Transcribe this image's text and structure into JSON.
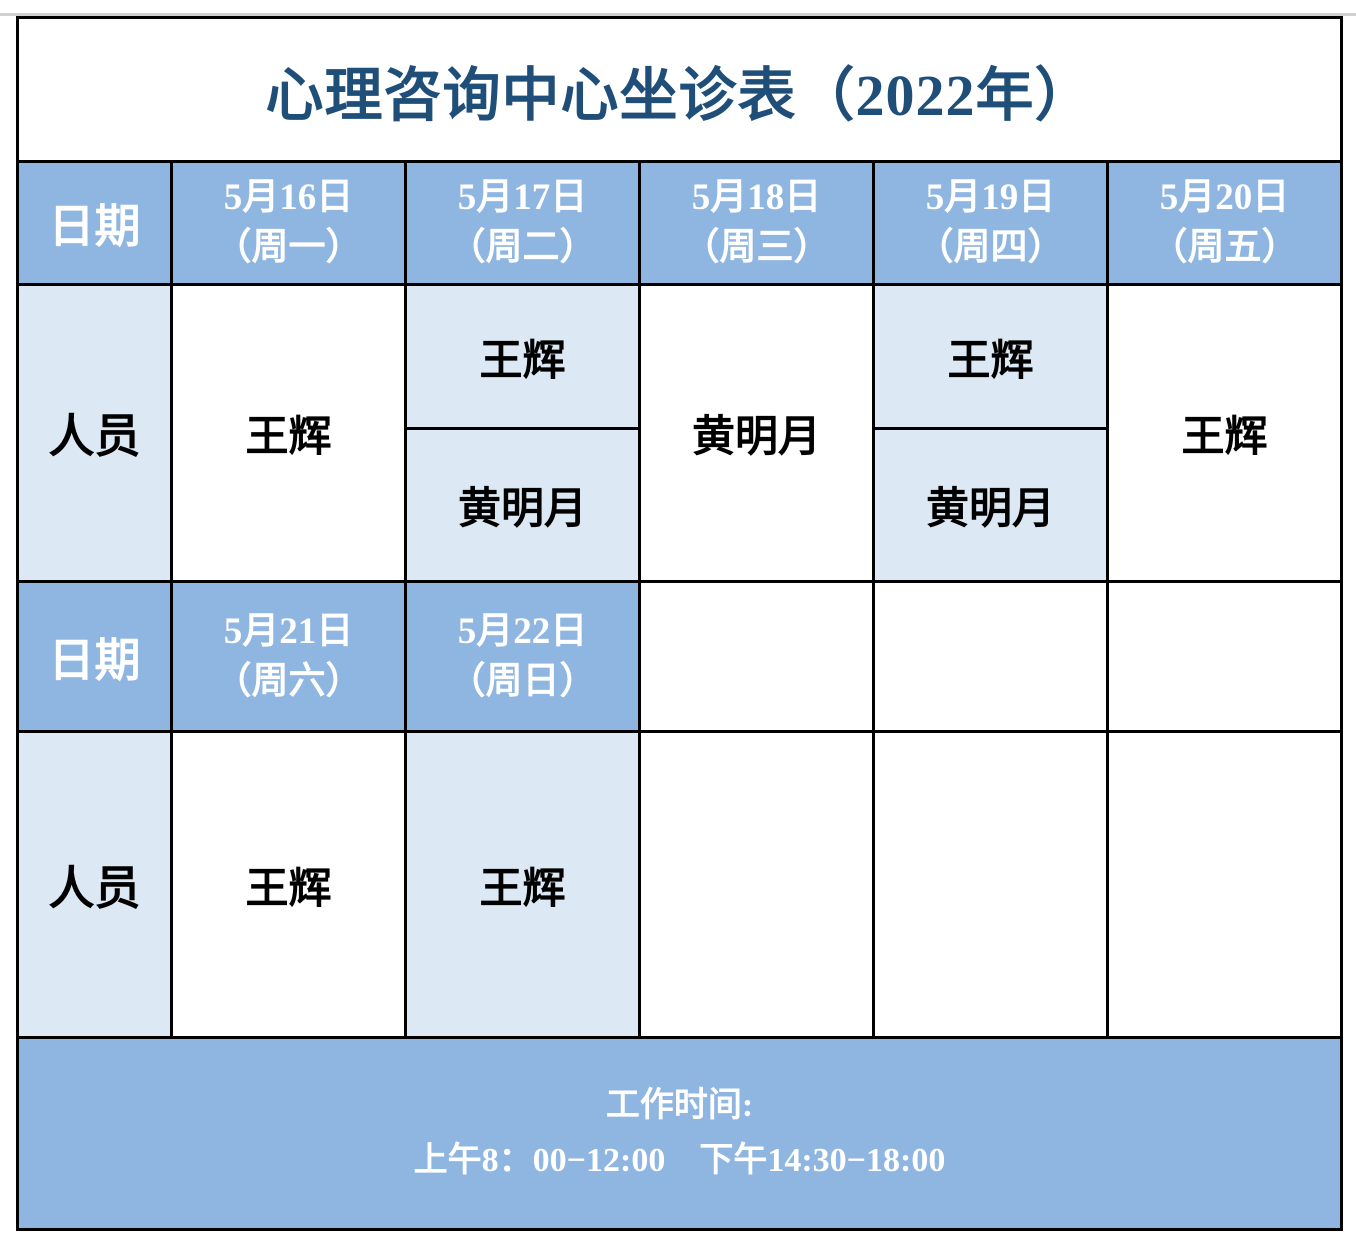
{
  "title": "心理咨询中心坐诊表（2022年）",
  "week1": {
    "date_label": "日期",
    "person_label": "人员",
    "days": [
      {
        "date": "5月16日",
        "weekday": "（周一）"
      },
      {
        "date": "5月17日",
        "weekday": "（周二）"
      },
      {
        "date": "5月18日",
        "weekday": "（周三）"
      },
      {
        "date": "5月19日",
        "weekday": "（周四）"
      },
      {
        "date": "5月20日",
        "weekday": "（周五）"
      }
    ],
    "assignments": {
      "mon": "王辉",
      "tue_first": "王辉",
      "tue_second": "黄明月",
      "wed": "黄明月",
      "thu_first": "王辉",
      "thu_second": "黄明月",
      "fri": "王辉"
    }
  },
  "week2": {
    "date_label": "日期",
    "person_label": "人员",
    "days": [
      {
        "date": "5月21日",
        "weekday": "（周六）"
      },
      {
        "date": "5月22日",
        "weekday": "（周日）"
      }
    ],
    "assignments": {
      "sat": "王辉",
      "sun": "王辉"
    }
  },
  "footer": {
    "line1": "工作时间:",
    "line2": "上午8：00−12:00　下午14:30−18:00"
  },
  "colors": {
    "header_blue": "#8fb5e1",
    "light_blue": "#dce9f5",
    "title_navy": "#1f4e79",
    "border_black": "#000000",
    "rule_gray": "#d0d0d0",
    "header_text_white": "#ffffff",
    "body_text_black": "#000000"
  }
}
